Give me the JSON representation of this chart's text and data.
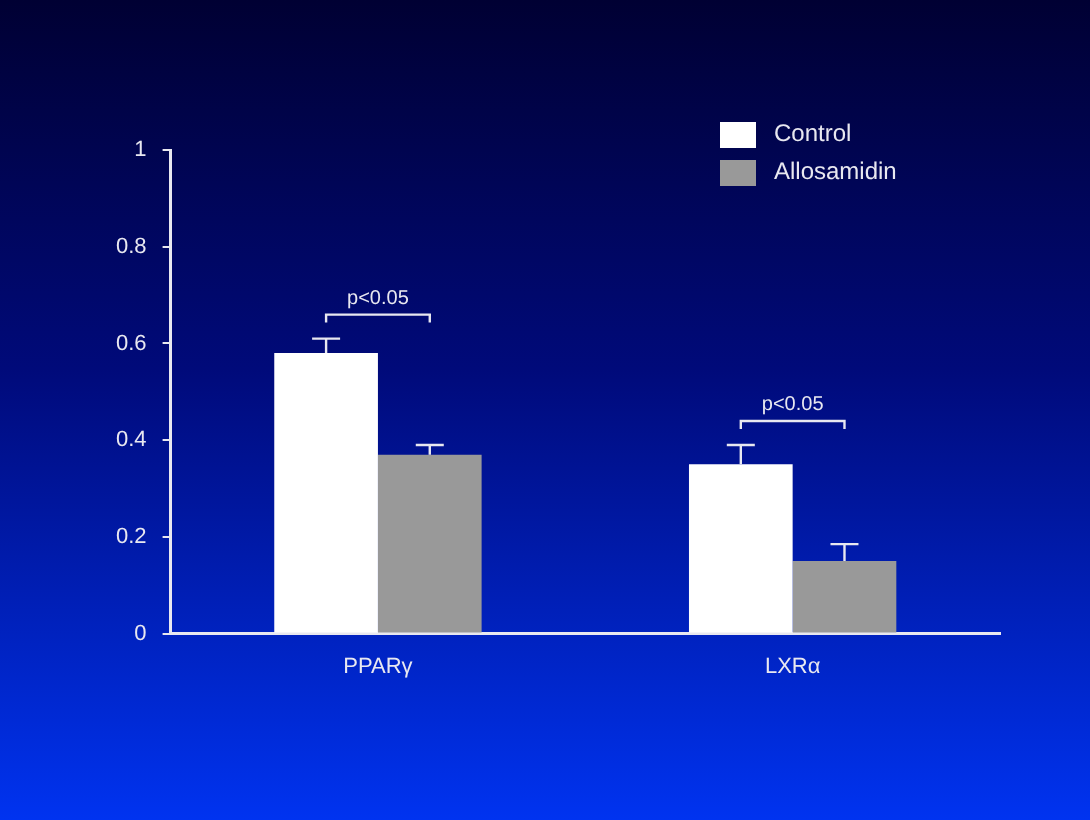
{
  "chart_data": {
    "type": "bar",
    "categories": [
      "PPARγ",
      "LXRα"
    ],
    "series": [
      {
        "name": "Control",
        "color": "#ffffff",
        "values": [
          0.58,
          0.35
        ],
        "errors": [
          [
            0.58,
            0.61
          ],
          [
            0.35,
            0.39
          ]
        ]
      },
      {
        "name": "Allosamidin",
        "color": "#999999",
        "values": [
          0.37,
          0.15
        ],
        "errors": [
          [
            0.37,
            0.39
          ],
          [
            0.15,
            0.185
          ]
        ]
      }
    ],
    "ylim": [
      0,
      1
    ],
    "yticks": [
      0,
      0.2,
      0.4,
      0.6,
      0.8,
      1
    ],
    "annotations": [
      "p<0.05",
      "p<0.05"
    ],
    "grid": false,
    "legend": "top right"
  }
}
